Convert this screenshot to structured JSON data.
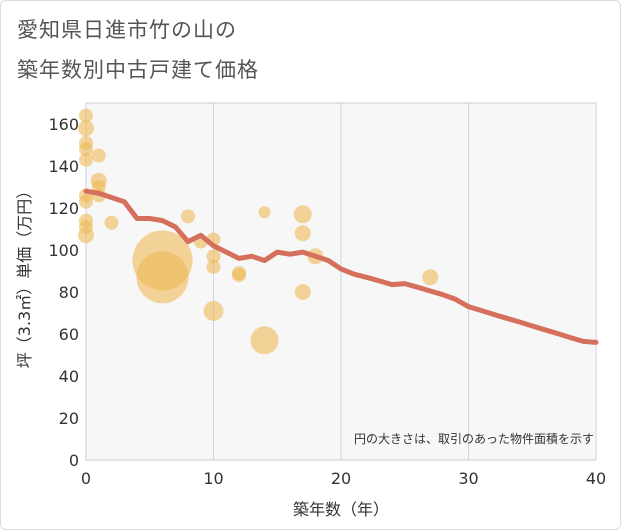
{
  "title_line1": "愛知県日進市竹の山の",
  "title_line2": "築年数別中古戸建て価格",
  "chart_data": {
    "type": "scatter",
    "title": "愛知県日進市竹の山の築年数別中古戸建て価格",
    "xlabel": "築年数（年）",
    "ylabel": "坪（3.3㎡）単価（万円）",
    "xlim": [
      0,
      40
    ],
    "ylim": [
      0,
      170
    ],
    "xticks": [
      0,
      10,
      20,
      30,
      40
    ],
    "yticks": [
      0,
      20,
      40,
      60,
      80,
      100,
      120,
      140,
      160
    ],
    "grid": true,
    "note": "円の大きさは、取引のあった物件面積を示す",
    "bubbles": [
      {
        "x": 0,
        "y": 164,
        "size": 7
      },
      {
        "x": 0,
        "y": 158,
        "size": 8
      },
      {
        "x": 0,
        "y": 151,
        "size": 7
      },
      {
        "x": 0,
        "y": 148,
        "size": 7
      },
      {
        "x": 0,
        "y": 143,
        "size": 7
      },
      {
        "x": 0,
        "y": 126,
        "size": 7
      },
      {
        "x": 0,
        "y": 123,
        "size": 7
      },
      {
        "x": 0,
        "y": 114,
        "size": 7
      },
      {
        "x": 0,
        "y": 111,
        "size": 7
      },
      {
        "x": 0,
        "y": 107,
        "size": 8
      },
      {
        "x": 1,
        "y": 145,
        "size": 7
      },
      {
        "x": 1,
        "y": 133,
        "size": 8
      },
      {
        "x": 1,
        "y": 130,
        "size": 7
      },
      {
        "x": 1,
        "y": 126,
        "size": 7
      },
      {
        "x": 2,
        "y": 113,
        "size": 7
      },
      {
        "x": 6,
        "y": 95,
        "size": 30
      },
      {
        "x": 6,
        "y": 87,
        "size": 26
      },
      {
        "x": 8,
        "y": 116,
        "size": 7
      },
      {
        "x": 9,
        "y": 104,
        "size": 7
      },
      {
        "x": 10,
        "y": 105,
        "size": 7
      },
      {
        "x": 10,
        "y": 97,
        "size": 7
      },
      {
        "x": 10,
        "y": 92,
        "size": 7
      },
      {
        "x": 10,
        "y": 71,
        "size": 10
      },
      {
        "x": 12,
        "y": 89,
        "size": 7
      },
      {
        "x": 12,
        "y": 88,
        "size": 7
      },
      {
        "x": 14,
        "y": 118,
        "size": 6
      },
      {
        "x": 14,
        "y": 57,
        "size": 14
      },
      {
        "x": 17,
        "y": 117,
        "size": 9
      },
      {
        "x": 17,
        "y": 108,
        "size": 8
      },
      {
        "x": 17,
        "y": 80,
        "size": 8
      },
      {
        "x": 18,
        "y": 97,
        "size": 8
      },
      {
        "x": 27,
        "y": 87,
        "size": 8
      }
    ],
    "trend_line": {
      "x": [
        0,
        1,
        2,
        3,
        4,
        5,
        6,
        7,
        8,
        9,
        10,
        11,
        12,
        13,
        14,
        15,
        16,
        17,
        18,
        19,
        20,
        21,
        22,
        23,
        24,
        25,
        26,
        27,
        28,
        29,
        30,
        31,
        32,
        33,
        34,
        35,
        36,
        37,
        38,
        39,
        40
      ],
      "y": [
        128,
        127,
        125,
        123,
        115,
        115,
        114,
        111,
        104,
        107,
        102,
        99,
        96,
        97,
        95,
        99,
        98,
        99,
        97,
        95,
        91,
        88.5,
        87,
        85.3,
        83.5,
        84,
        82.3,
        80.5,
        78.7,
        76.5,
        73,
        71.2,
        69.3,
        67.5,
        65.7,
        63.8,
        62,
        60.2,
        58.3,
        56.5,
        56
      ]
    }
  }
}
